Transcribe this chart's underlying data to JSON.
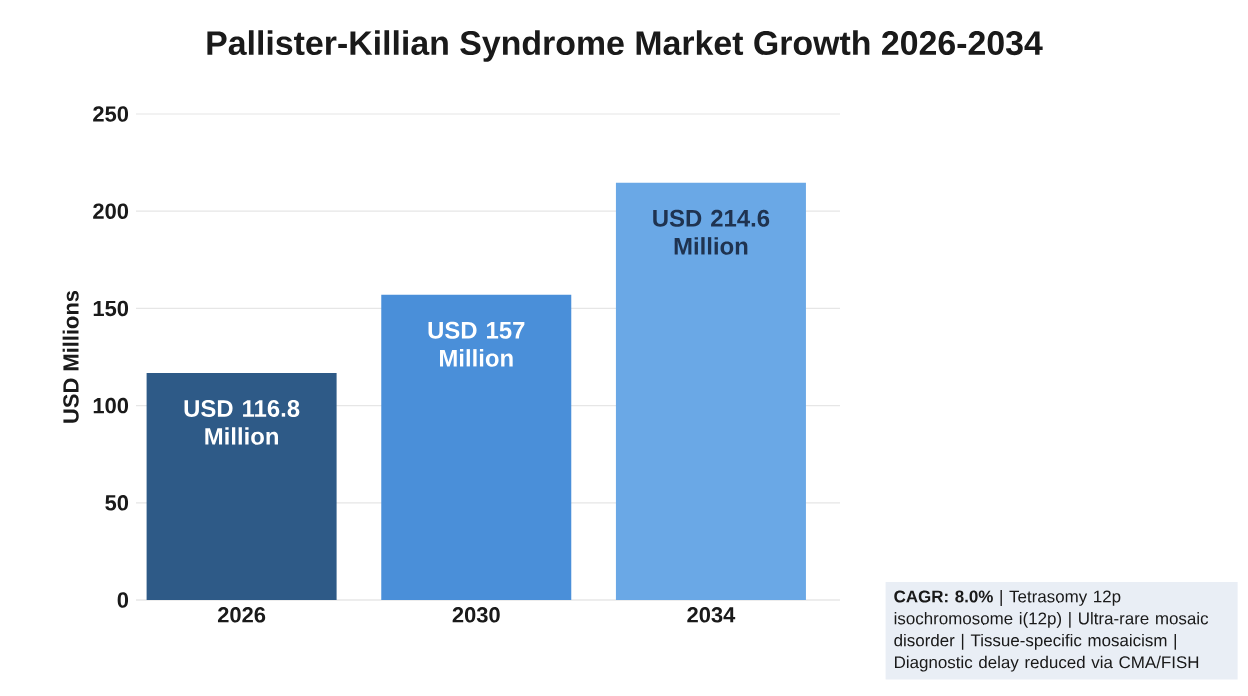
{
  "chart_data": {
    "type": "bar",
    "title": "Pallister-Killian Syndrome Market Growth 2026-2034",
    "categories": [
      "2026",
      "2030",
      "2034"
    ],
    "values": [
      116.8,
      157,
      214.6
    ],
    "colors": [
      "#2e5a87",
      "#4a8fd9",
      "#6aa8e6"
    ],
    "value_labels": [
      "USD 116.8 Million",
      "USD 157 Million",
      "USD 214.6 Million"
    ],
    "ylabel": "USD Millions",
    "ylim": [
      0,
      250
    ],
    "yticks": [
      0,
      50,
      100,
      150,
      200,
      250
    ],
    "grid": "y",
    "annotations": [
      "**CAGR: 8.0%** | Tetrasomy 12p isochromosome i(12p) | Ultra-rare mosaic disorder | Tissue-specific mosaicism | Diagnostic delay reduced via CMA/FISH"
    ]
  }
}
